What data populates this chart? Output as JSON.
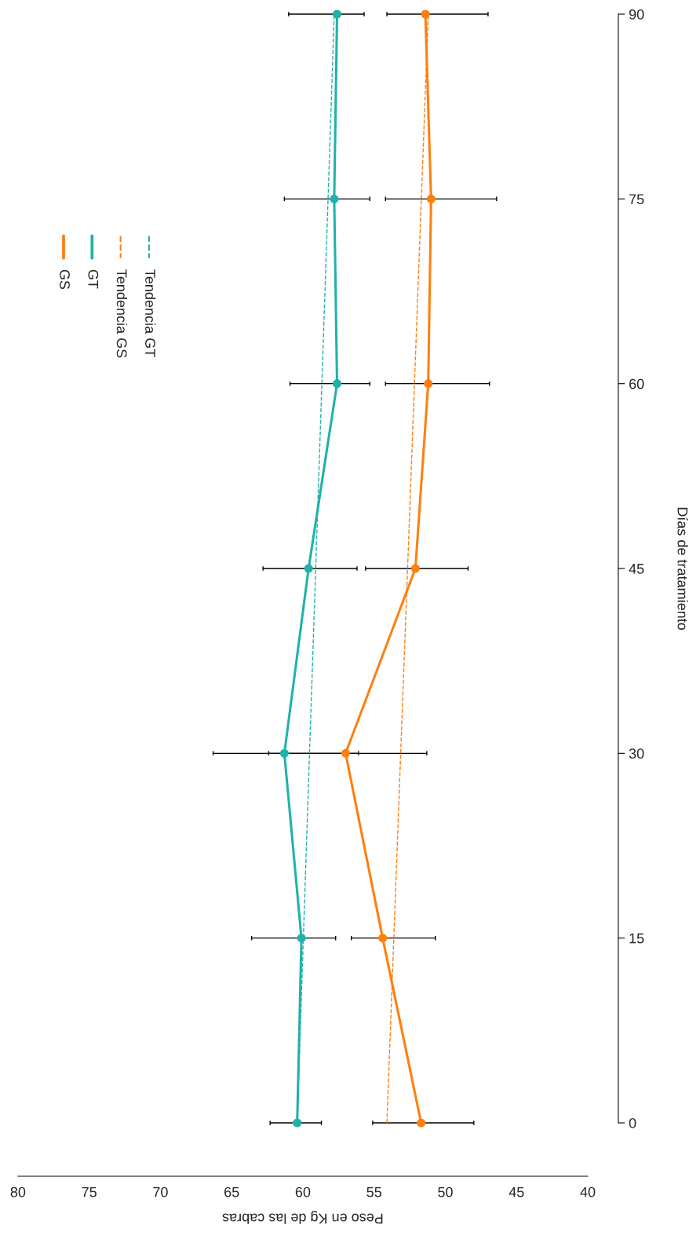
{
  "chart_data": {
    "type": "line",
    "xlabel": "Peso en Kg de las cabras",
    "ylabel": "Días de tratamiento",
    "xlim": [
      80,
      40
    ],
    "xticks": [
      80,
      75,
      70,
      65,
      60,
      55,
      50,
      45,
      40
    ],
    "ylim": [
      0,
      90
    ],
    "yticks": [
      0,
      15,
      30,
      45,
      60,
      75,
      90
    ],
    "legend": "top left",
    "series": [
      {
        "name": "GS",
        "color": "#ff7f0e",
        "marker": "circle",
        "line_style": "solid",
        "x": [
          51.7,
          54.4,
          57.0,
          52.1,
          51.2,
          51.0,
          51.4
        ],
        "values": [
          0,
          15,
          30,
          45,
          60,
          75,
          90
        ],
        "xerrors": [
          [
            48.0,
            55.1
          ],
          [
            50.7,
            56.6
          ],
          [
            51.3,
            62.4
          ],
          [
            48.4,
            55.6
          ],
          [
            46.9,
            54.2
          ],
          [
            46.4,
            54.2
          ],
          [
            47.0,
            54.1
          ]
        ]
      },
      {
        "name": "GT",
        "color": "#20b2aa",
        "marker": "circle",
        "line_style": "solid",
        "x": [
          60.4,
          60.1,
          61.3,
          59.6,
          57.6,
          57.8,
          57.6
        ],
        "values": [
          0,
          15,
          30,
          45,
          60,
          75,
          90
        ],
        "xerrors": [
          [
            58.7,
            62.3
          ],
          [
            57.7,
            63.6
          ],
          [
            56.1,
            66.3
          ],
          [
            56.2,
            62.8
          ],
          [
            55.3,
            60.9
          ],
          [
            55.3,
            61.3
          ],
          [
            55.7,
            61.0
          ]
        ]
      },
      {
        "name": "Tendencia GS",
        "color": "#ff7f0e",
        "marker": "none",
        "line_style": "dashed",
        "x": [
          54.1,
          51.2
        ],
        "values": [
          0,
          90
        ]
      },
      {
        "name": "Tendencia GT",
        "color": "#20b2aa",
        "marker": "none",
        "line_style": "dashed",
        "x": [
          60.4,
          57.8
        ],
        "values": [
          0,
          90
        ]
      }
    ]
  }
}
